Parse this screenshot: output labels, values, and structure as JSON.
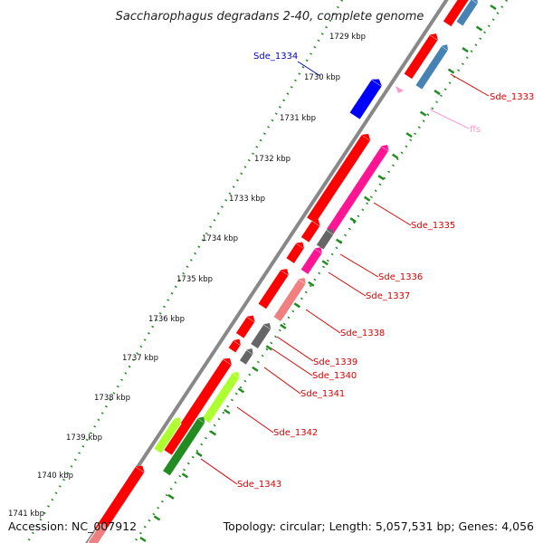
{
  "title": "Saccharophagus degradans 2-40, complete genome",
  "footer": {
    "accession": "Accession: NC_007912",
    "summary": "Topology: circular; Length: 5,057,531 bp; Genes: 4,056"
  },
  "ruler_labels": [
    "1729 kbp",
    "1730 kbp",
    "1731 kbp",
    "1732 kbp",
    "1733 kbp",
    "1734 kbp",
    "1735 kbp",
    "1736 kbp",
    "1737 kbp",
    "1738 kbp",
    "1739 kbp",
    "1740 kbp",
    "1741 kbp"
  ],
  "gene_labels": [
    {
      "text": "Sde_1334",
      "color": "#0000cc"
    },
    {
      "text": "Sde_1333",
      "color": "#dd0000"
    },
    {
      "text": "ffs",
      "color": "#ff99cc"
    },
    {
      "text": "Sde_1335",
      "color": "#dd0000"
    },
    {
      "text": "Sde_1336",
      "color": "#dd0000"
    },
    {
      "text": "Sde_1337",
      "color": "#dd0000"
    },
    {
      "text": "Sde_1338",
      "color": "#dd0000"
    },
    {
      "text": "Sde_1339",
      "color": "#dd0000"
    },
    {
      "text": "Sde_1340",
      "color": "#dd0000"
    },
    {
      "text": "Sde_1341",
      "color": "#dd0000"
    },
    {
      "text": "Sde_1342",
      "color": "#dd0000"
    },
    {
      "text": "Sde_1343",
      "color": "#dd0000"
    }
  ],
  "colors": {
    "cds": "#ff0000",
    "cog_magenta": "#ff1493",
    "cog_gray": "#666666",
    "cog_salmon": "#f08080",
    "cog_blue": "#4682b4",
    "cog_lime": "#adff2f",
    "cog_green": "#228b22",
    "blue_gene": "#0000ff",
    "rna": "#ff99cc",
    "backbone": "#888888",
    "ruler_dots": "#228b22"
  }
}
